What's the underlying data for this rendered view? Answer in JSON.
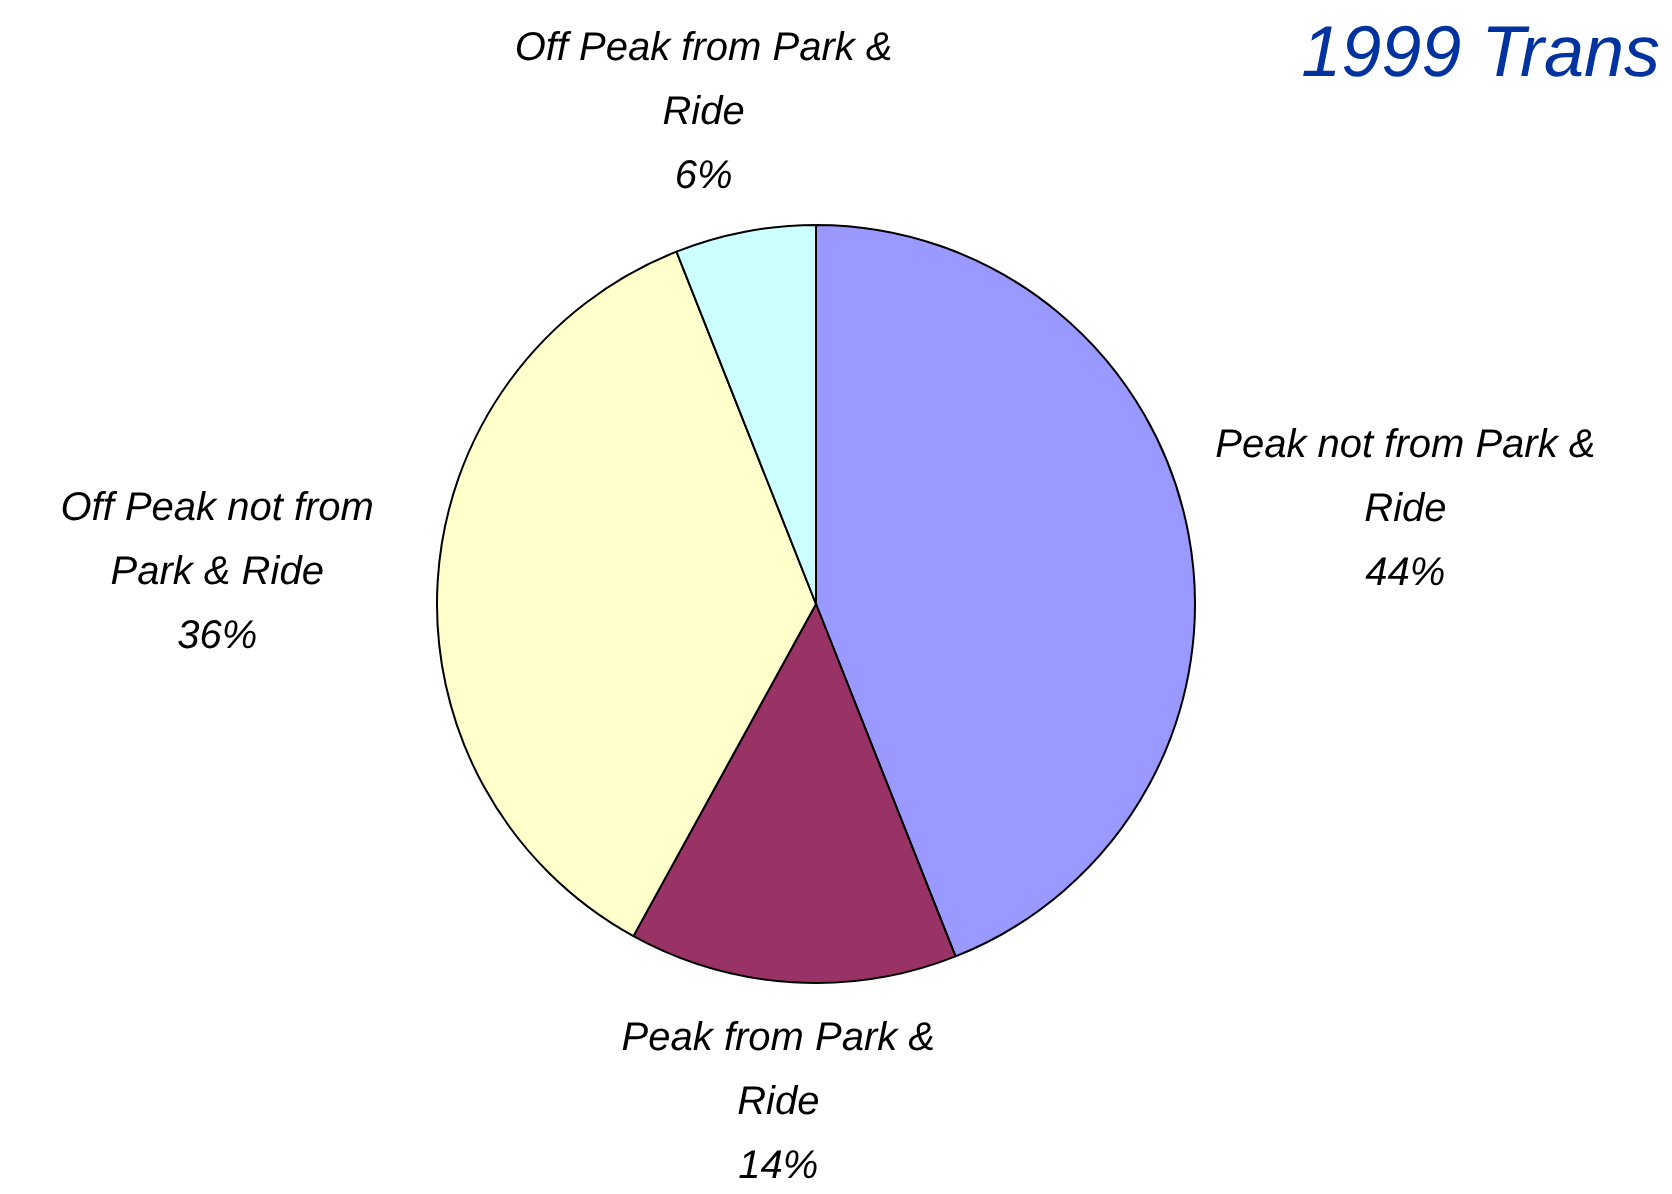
{
  "chart_data": {
    "type": "pie",
    "title": "1999 Trans",
    "categories": [
      "Peak not from Park & Ride",
      "Peak from Park & Ride",
      "Off Peak not from Park & Ride",
      "Off Peak from Park & Ride"
    ],
    "values": [
      44,
      14,
      36,
      6
    ],
    "colors": [
      "#9999ff",
      "#993366",
      "#ffffcc",
      "#ccffff"
    ],
    "value_labels": [
      "44%",
      "14%",
      "36%",
      "6%"
    ],
    "legend": false
  }
}
